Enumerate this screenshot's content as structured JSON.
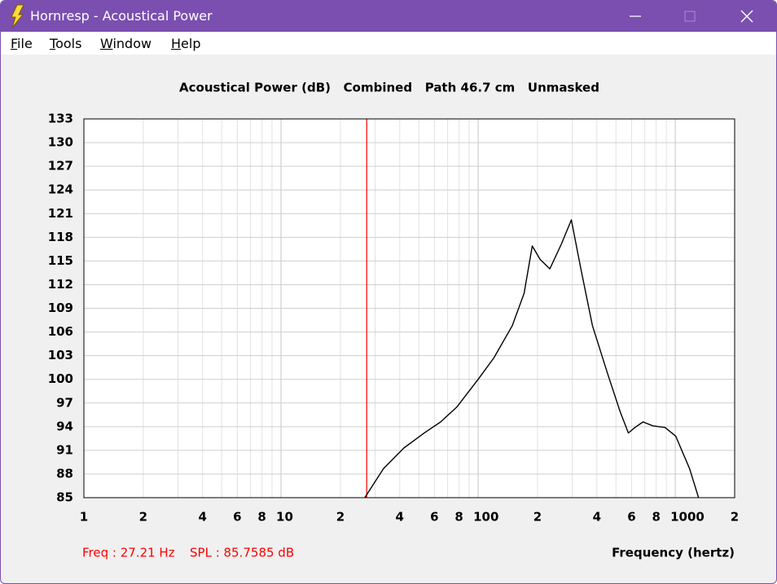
{
  "window": {
    "title": "Hornresp - Acoustical Power",
    "menu": [
      "File",
      "Tools",
      "Window",
      "Help"
    ]
  },
  "chart_data": {
    "type": "line",
    "title": "Acoustical Power (dB)   Combined   Path 46.7 cm   Unmasked",
    "x_label": "Frequency (hertz)",
    "log_x": true,
    "grid": true,
    "color": "#000000",
    "x": [
      26.6,
      33.1,
      42,
      53.3,
      64.5,
      78,
      100,
      120,
      149,
      171,
      188,
      206,
      231,
      264,
      297,
      332,
      380,
      455,
      525,
      578,
      624,
      686,
      769,
      887,
      1004,
      1181,
      1312
    ],
    "values": [
      85,
      88.7,
      91.3,
      93.2,
      94.6,
      96.5,
      100,
      102.7,
      106.8,
      110.9,
      116.9,
      115.2,
      114,
      117.1,
      120.2,
      114,
      106.8,
      100.6,
      95.9,
      93.2,
      93.9,
      94.6,
      94.1,
      93.9,
      92.8,
      88.7,
      85
    ],
    "xlim": [
      1,
      2000
    ],
    "ylim": [
      85,
      133
    ],
    "xticks": [
      1,
      {
        "value": 2,
        "label": "2"
      },
      {
        "value": 4,
        "label": "4"
      },
      {
        "value": 6,
        "label": "6"
      },
      {
        "value": 8,
        "label": "8"
      },
      10,
      {
        "value": 20,
        "label": "2"
      },
      {
        "value": 40,
        "label": "4"
      },
      {
        "value": 60,
        "label": "6"
      },
      {
        "value": 80,
        "label": "8"
      },
      100,
      {
        "value": 200,
        "label": "2"
      },
      {
        "value": 400,
        "label": "4"
      },
      {
        "value": 600,
        "label": "6"
      },
      {
        "value": 800,
        "label": "8"
      },
      1000,
      {
        "value": 2000,
        "label": "2"
      }
    ],
    "xminor": [
      3,
      5,
      7,
      9,
      30,
      50,
      70,
      90,
      300,
      500,
      700,
      900
    ],
    "yticks": [
      85,
      88,
      91,
      94,
      97,
      100,
      103,
      106,
      109,
      112,
      115,
      118,
      121,
      124,
      127,
      130,
      133
    ],
    "cursor": {
      "value": 27.21,
      "label": "Freq : 27.21 Hz"
    },
    "cursor_spl": {
      "value": 85.7585,
      "label": "SPL : 85.7585 dB"
    },
    "cursor_color": "#ff0000"
  }
}
